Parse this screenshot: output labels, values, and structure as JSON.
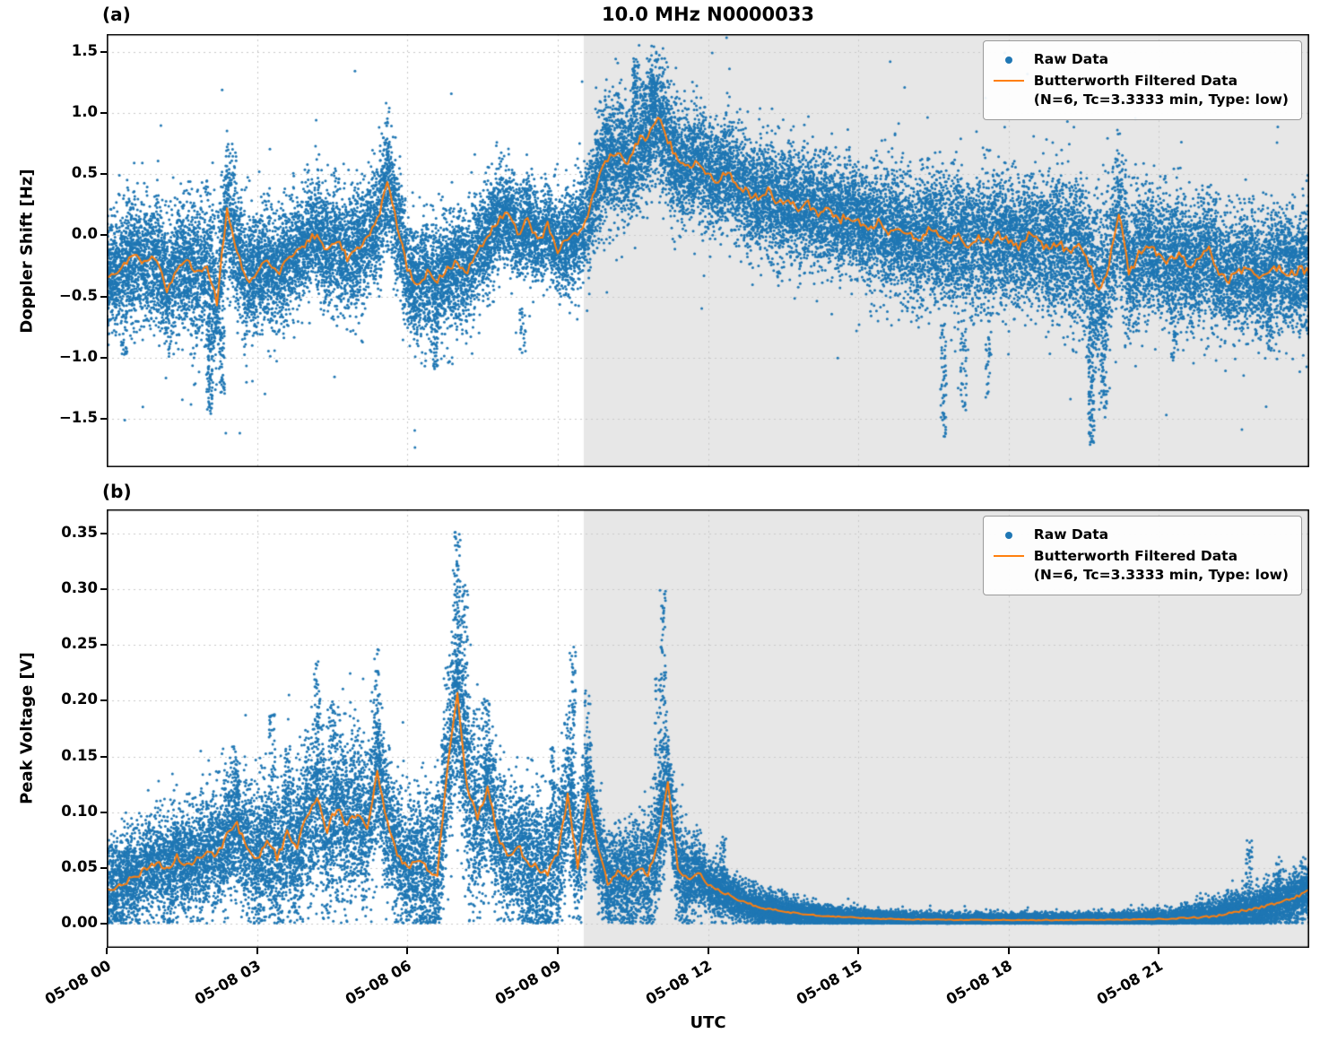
{
  "figure": {
    "title": "10.0 MHz N0000033",
    "xlabel": "UTC",
    "panel_a_label": "(a)",
    "panel_b_label": "(b)"
  },
  "legend": {
    "raw_label": "Raw Data",
    "filtered_label": "Butterworth Filtered Data",
    "filtered_sublabel": "(N=6, Tc=3.3333 min, Type: low)"
  },
  "colors": {
    "raw": "#1f77b4",
    "filtered": "#ff7f0e",
    "shaded_region": "#e7e7e7",
    "grid": "#c9c9c9",
    "axis": "#000000",
    "background": "#ffffff"
  },
  "chart_data": [
    {
      "type": "scatter+line",
      "panel": "a",
      "ylabel": "Doppler Shift [Hz]",
      "xlabel": "UTC",
      "xlim_hours": [
        0,
        24
      ],
      "ylim": [
        -1.9,
        1.65
      ],
      "x_tick_hours": [
        0,
        3,
        6,
        9,
        12,
        15,
        18,
        21
      ],
      "x_tick_labels": [
        "05-08 00",
        "05-08 03",
        "05-08 06",
        "05-08 09",
        "05-08 12",
        "05-08 15",
        "05-08 18",
        "05-08 21"
      ],
      "y_tick_values": [
        -1.5,
        -1.0,
        -0.5,
        0.0,
        0.5,
        1.0,
        1.5
      ],
      "y_tick_labels": [
        "−1.5",
        "−1.0",
        "−0.5",
        "0.0",
        "0.5",
        "1.0",
        "1.5"
      ],
      "grid": true,
      "legend_position": "upper right",
      "shaded_region_hours": [
        9.52,
        24
      ],
      "filtered_line": {
        "t0": 0,
        "dt": 0.2,
        "y": [
          -0.35,
          -0.28,
          -0.22,
          -0.18,
          -0.22,
          -0.18,
          -0.45,
          -0.28,
          -0.22,
          -0.3,
          -0.25,
          -0.55,
          0.22,
          -0.12,
          -0.38,
          -0.3,
          -0.22,
          -0.32,
          -0.2,
          -0.12,
          -0.05,
          0.02,
          -0.12,
          -0.05,
          -0.18,
          -0.1,
          0.0,
          0.12,
          0.45,
          0.08,
          -0.28,
          -0.42,
          -0.3,
          -0.38,
          -0.28,
          -0.22,
          -0.28,
          -0.12,
          0.0,
          0.12,
          0.18,
          0.02,
          0.12,
          -0.05,
          0.08,
          -0.12,
          -0.05,
          0.02,
          0.15,
          0.45,
          0.62,
          0.68,
          0.6,
          0.78,
          0.82,
          1.0,
          0.78,
          0.6,
          0.55,
          0.62,
          0.5,
          0.45,
          0.52,
          0.42,
          0.35,
          0.3,
          0.36,
          0.26,
          0.3,
          0.2,
          0.26,
          0.16,
          0.22,
          0.12,
          0.16,
          0.1,
          0.05,
          0.12,
          0.02,
          0.06,
          0.0,
          -0.05,
          0.05,
          0.0,
          -0.06,
          0.0,
          -0.1,
          0.0,
          -0.06,
          0.0,
          -0.05,
          -0.1,
          0.0,
          -0.05,
          -0.12,
          -0.05,
          -0.15,
          -0.1,
          -0.22,
          -0.48,
          -0.25,
          0.2,
          -0.32,
          -0.15,
          -0.1,
          -0.16,
          -0.22,
          -0.15,
          -0.26,
          -0.2,
          -0.12,
          -0.3,
          -0.36,
          -0.3,
          -0.26,
          -0.36,
          -0.3,
          -0.26,
          -0.32,
          -0.28,
          -0.3
        ]
      },
      "raw_scatter": {
        "n_points": 30000,
        "tail_prob": 0.015,
        "tail_mult": 2.2,
        "fold_at_zero": false,
        "sigma_by_hour": [
          0.22,
          0.25,
          0.3,
          0.25,
          0.22,
          0.25,
          0.25,
          0.22,
          0.2,
          0.18,
          0.25,
          0.25,
          0.22,
          0.22,
          0.22,
          0.22,
          0.25,
          0.28,
          0.25,
          0.3,
          0.32,
          0.25,
          0.25,
          0.25,
          0.25
        ],
        "outlier_columns": [
          {
            "t": 0.35,
            "y0": -1.05,
            "y1": -0.6,
            "n": 30
          },
          {
            "t": 2.05,
            "y0": -1.45,
            "y1": -0.7,
            "n": 80
          },
          {
            "t": 2.3,
            "y0": -1.3,
            "y1": -0.7,
            "n": 50
          },
          {
            "t": 6.55,
            "y0": -1.1,
            "y1": -0.6,
            "n": 40
          },
          {
            "t": 8.3,
            "y0": -1.0,
            "y1": -0.6,
            "n": 25
          },
          {
            "t": 10.55,
            "y0": 1.05,
            "y1": 1.45,
            "n": 45
          },
          {
            "t": 10.9,
            "y0": 1.05,
            "y1": 1.3,
            "n": 50
          },
          {
            "t": 16.7,
            "y0": -1.65,
            "y1": -0.7,
            "n": 60
          },
          {
            "t": 17.1,
            "y0": -1.45,
            "y1": -0.7,
            "n": 40
          },
          {
            "t": 17.6,
            "y0": -1.35,
            "y1": -0.7,
            "n": 30
          },
          {
            "t": 19.65,
            "y0": -1.72,
            "y1": -0.6,
            "n": 120
          },
          {
            "t": 19.9,
            "y0": -1.5,
            "y1": -0.6,
            "n": 60
          },
          {
            "t": 21.3,
            "y0": -1.05,
            "y1": -0.5,
            "n": 30
          },
          {
            "t": 23.2,
            "y0": -0.95,
            "y1": -0.55,
            "n": 25
          }
        ]
      }
    },
    {
      "type": "scatter+line",
      "panel": "b",
      "ylabel": "Peak Voltage [V]",
      "xlabel": "UTC",
      "xlim_hours": [
        0,
        24
      ],
      "ylim": [
        -0.022,
        0.372
      ],
      "x_tick_hours": [
        0,
        3,
        6,
        9,
        12,
        15,
        18,
        21
      ],
      "x_tick_labels": [
        "05-08 00",
        "05-08 03",
        "05-08 06",
        "05-08 09",
        "05-08 12",
        "05-08 15",
        "05-08 18",
        "05-08 21"
      ],
      "y_tick_values": [
        0.0,
        0.05,
        0.1,
        0.15,
        0.2,
        0.25,
        0.3,
        0.35
      ],
      "y_tick_labels": [
        "0.00",
        "0.05",
        "0.10",
        "0.15",
        "0.20",
        "0.25",
        "0.30",
        "0.35"
      ],
      "grid": true,
      "legend_position": "upper right",
      "shaded_region_hours": [
        9.52,
        24
      ],
      "filtered_line": {
        "t0": 0,
        "dt": 0.2,
        "y": [
          0.03,
          0.032,
          0.038,
          0.042,
          0.05,
          0.055,
          0.048,
          0.06,
          0.052,
          0.058,
          0.065,
          0.06,
          0.08,
          0.09,
          0.065,
          0.058,
          0.072,
          0.06,
          0.08,
          0.07,
          0.095,
          0.11,
          0.085,
          0.105,
          0.088,
          0.1,
          0.085,
          0.135,
          0.09,
          0.062,
          0.05,
          0.056,
          0.05,
          0.046,
          0.14,
          0.21,
          0.12,
          0.095,
          0.12,
          0.08,
          0.06,
          0.07,
          0.055,
          0.05,
          0.046,
          0.06,
          0.115,
          0.05,
          0.12,
          0.07,
          0.035,
          0.046,
          0.04,
          0.05,
          0.044,
          0.07,
          0.125,
          0.05,
          0.04,
          0.046,
          0.035,
          0.03,
          0.026,
          0.021,
          0.018,
          0.015,
          0.013,
          0.012,
          0.01,
          0.009,
          0.008,
          0.007,
          0.0065,
          0.006,
          0.0055,
          0.005,
          0.0045,
          0.0042,
          0.004,
          0.0038,
          0.0036,
          0.0035,
          0.0034,
          0.0033,
          0.0032,
          0.0032,
          0.0031,
          0.0031,
          0.003,
          0.003,
          0.003,
          0.003,
          0.003,
          0.003,
          0.003,
          0.003,
          0.0031,
          0.0031,
          0.0032,
          0.0032,
          0.0033,
          0.0034,
          0.0035,
          0.0036,
          0.0038,
          0.004,
          0.0042,
          0.0045,
          0.005,
          0.0055,
          0.006,
          0.007,
          0.009,
          0.011,
          0.012,
          0.014,
          0.016,
          0.019,
          0.021,
          0.025,
          0.03
        ]
      },
      "raw_scatter": {
        "n_points": 30000,
        "tail_prob": 0.02,
        "tail_mult": 1.8,
        "fold_at_zero": true,
        "sigma_by_hour": [
          0.02,
          0.022,
          0.026,
          0.03,
          0.035,
          0.035,
          0.028,
          0.045,
          0.03,
          0.035,
          0.02,
          0.03,
          0.012,
          0.008,
          0.005,
          0.004,
          0.003,
          0.003,
          0.003,
          0.003,
          0.003,
          0.004,
          0.007,
          0.01,
          0.012
        ],
        "outlier_columns": [
          {
            "t": 2.6,
            "y0": 0.08,
            "y1": 0.15,
            "n": 30
          },
          {
            "t": 3.3,
            "y0": 0.1,
            "y1": 0.19,
            "n": 40
          },
          {
            "t": 3.6,
            "y0": 0.1,
            "y1": 0.16,
            "n": 30
          },
          {
            "t": 4.2,
            "y0": 0.12,
            "y1": 0.24,
            "n": 60
          },
          {
            "t": 4.5,
            "y0": 0.12,
            "y1": 0.2,
            "n": 40
          },
          {
            "t": 5.4,
            "y0": 0.12,
            "y1": 0.25,
            "n": 50
          },
          {
            "t": 7.0,
            "y0": 0.15,
            "y1": 0.352,
            "n": 120
          },
          {
            "t": 7.15,
            "y0": 0.12,
            "y1": 0.31,
            "n": 80
          },
          {
            "t": 7.6,
            "y0": 0.1,
            "y1": 0.2,
            "n": 60
          },
          {
            "t": 8.9,
            "y0": 0.08,
            "y1": 0.16,
            "n": 40
          },
          {
            "t": 9.3,
            "y0": 0.1,
            "y1": 0.25,
            "n": 70
          },
          {
            "t": 9.6,
            "y0": 0.08,
            "y1": 0.21,
            "n": 50
          },
          {
            "t": 11.0,
            "y0": 0.06,
            "y1": 0.22,
            "n": 60
          },
          {
            "t": 11.1,
            "y0": 0.1,
            "y1": 0.3,
            "n": 90
          },
          {
            "t": 12.3,
            "y0": 0.04,
            "y1": 0.08,
            "n": 30
          },
          {
            "t": 22.8,
            "y0": 0.02,
            "y1": 0.075,
            "n": 40
          },
          {
            "t": 23.4,
            "y0": 0.02,
            "y1": 0.06,
            "n": 30
          }
        ]
      }
    }
  ]
}
